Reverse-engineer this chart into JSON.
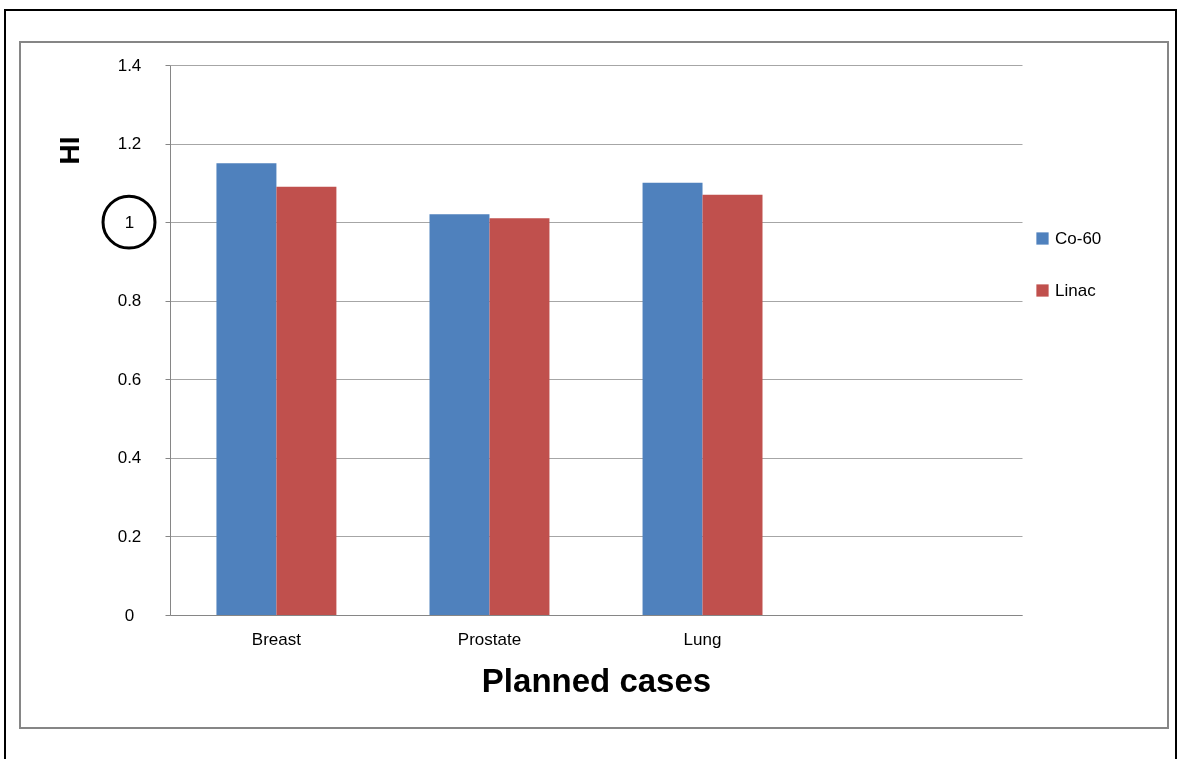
{
  "chart_data": {
    "type": "bar",
    "xlabel": "Planned cases",
    "ylabel": "HI",
    "categories": [
      "Breast",
      "Prostate",
      "Lung",
      null
    ],
    "series": [
      {
        "name": "Co-60",
        "color": "#4f81bd",
        "values": [
          1.15,
          1.02,
          1.1,
          null
        ]
      },
      {
        "name": "Linac",
        "color": "#c0504d",
        "values": [
          1.09,
          1.01,
          1.07,
          null
        ]
      }
    ],
    "ylim": [
      0,
      1.4
    ],
    "yticks": [
      0,
      0.2,
      0.4,
      0.6,
      0.8,
      1,
      1.2,
      1.4
    ],
    "grid": "y",
    "legend": "right"
  }
}
